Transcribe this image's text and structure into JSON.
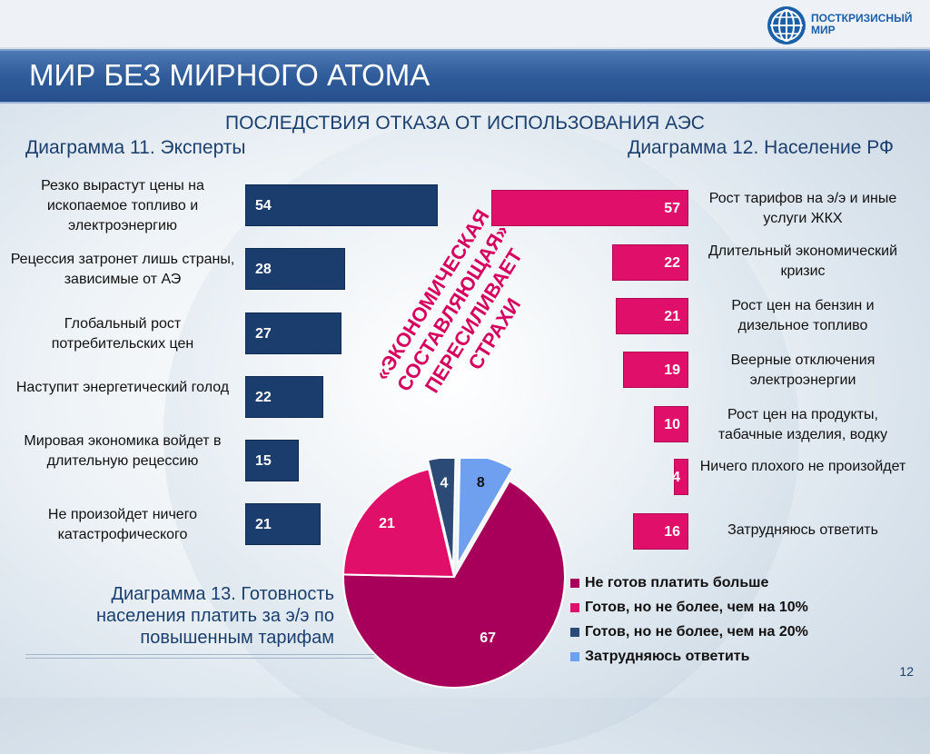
{
  "header": {
    "title": "МИР БЕЗ МИРНОГО АТОМА",
    "logo_text_line1": "ПОСТКРИЗИСНЫЙ",
    "logo_text_line2": "МИР"
  },
  "subtitle": "ПОСЛЕДСТВИЯ ОТКАЗА ОТ ИСПОЛЬЗОВАНИЯ АЭС",
  "slogan": "«ЭКОНОМИЧЕСКАЯ СОСТАВЛЯЮЩАЯ» ПЕРЕСИЛИВАЕТ СТРАХИ",
  "page_number": "12",
  "chart_data": [
    {
      "type": "bar",
      "title": "Диаграмма 11. Эксперты",
      "categories": [
        "Резко вырастут цены на ископаемое топливо и электроэнергию",
        "Рецессия затронет лишь страны, зависимые от АЭ",
        "Глобальный рост потребительских цен",
        "Наступит энергетический голод",
        "Мировая экономика войдет в длительную рецессию",
        "Не произойдет ничего катастрофического"
      ],
      "values": [
        54,
        28,
        27,
        22,
        15,
        21
      ],
      "color": "#1b3d6d"
    },
    {
      "type": "bar",
      "title": "Диаграмма 12. Население РФ",
      "categories": [
        "Рост тарифов на э/э и иные услуги ЖКХ",
        "Длительный экономический кризис",
        "Рост цен на бензин и дизельное топливо",
        "Веерные отключения электроэнергии",
        "Рост цен на продукты, табачные изделия, водку",
        "Ничего плохого не произойдет",
        "Затрудняюсь ответить"
      ],
      "values": [
        57,
        22,
        21,
        19,
        10,
        4,
        16
      ],
      "color": "#e0106a"
    },
    {
      "type": "pie",
      "title": "Диаграмма 13. Готовность населения платить за э/э по повышенным тарифам",
      "categories": [
        "Не готов платить больше",
        "Готов, но не более, чем на 10%",
        "Готов, но не более, чем на 20%",
        "Затрудняюсь ответить"
      ],
      "values": [
        67,
        21,
        4,
        8
      ],
      "colors": [
        "#a8005a",
        "#e0106a",
        "#2b4a75",
        "#6fa0f0"
      ]
    }
  ]
}
